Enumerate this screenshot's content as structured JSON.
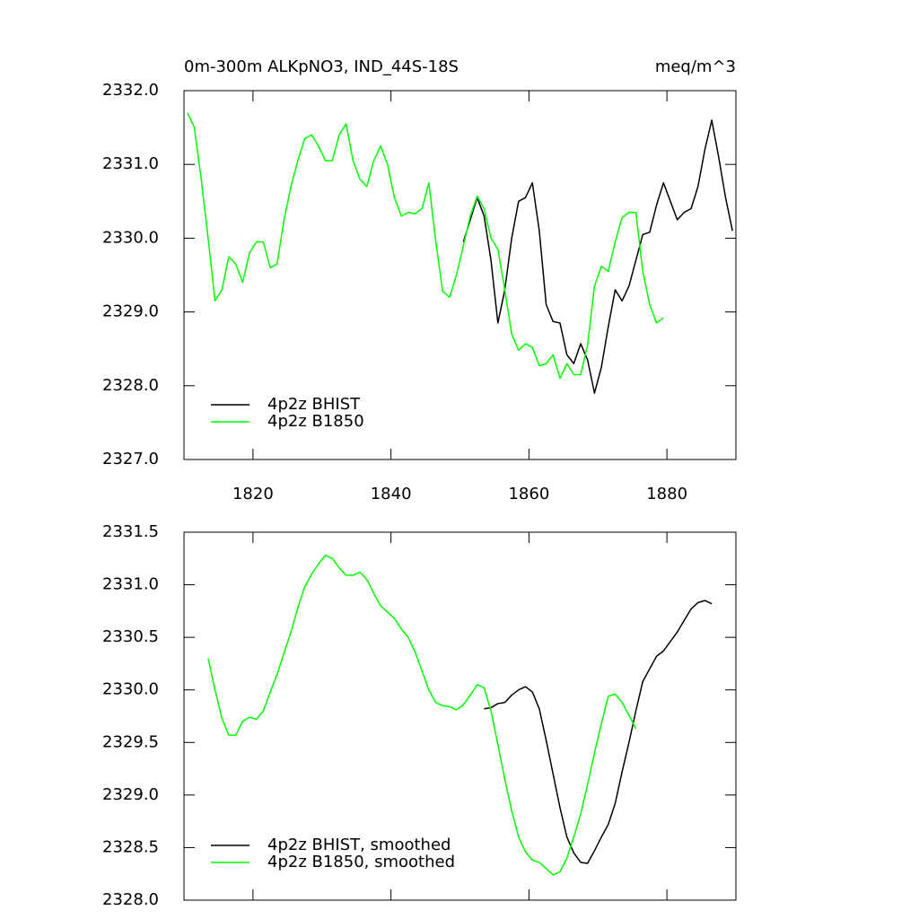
{
  "chart_data": [
    {
      "type": "line",
      "title": "0m-300m ALKpNO3, IND_44S-18S",
      "units_label": "meq/m^3",
      "xlim": [
        1810,
        1890
      ],
      "xticks": [
        1820,
        1840,
        1860,
        1880
      ],
      "show_xtick_labels": true,
      "ylim": [
        2327,
        2332
      ],
      "yticks": [
        {
          "value": 2327,
          "label": "2327.0"
        },
        {
          "value": 2328,
          "label": "2328.0"
        },
        {
          "value": 2329,
          "label": "2329.0"
        },
        {
          "value": 2330,
          "label": "2330.0"
        },
        {
          "value": 2331,
          "label": "2331.0"
        },
        {
          "value": 2332,
          "label": "2332.0"
        }
      ],
      "legend": "lower left",
      "series": [
        {
          "name": "4p2z BHIST",
          "color": "#000000",
          "x": [
            1850.5,
            1851.5,
            1852.5,
            1853.5,
            1854.5,
            1855.5,
            1856.5,
            1857.5,
            1858.5,
            1859.5,
            1860.5,
            1861.5,
            1862.5,
            1863.5,
            1864.5,
            1865.5,
            1866.5,
            1867.5,
            1868.5,
            1869.5,
            1870.5,
            1871.5,
            1872.5,
            1873.5,
            1874.5,
            1875.5,
            1876.5,
            1877.5,
            1878.5,
            1879.5,
            1880.5,
            1881.5,
            1882.5,
            1883.5,
            1884.5,
            1885.5,
            1886.5,
            1887.5,
            1888.5,
            1889.5
          ],
          "values": [
            2329.95,
            2330.25,
            2330.55,
            2330.3,
            2329.7,
            2328.85,
            2329.3,
            2330.0,
            2330.5,
            2330.55,
            2330.75,
            2330.1,
            2329.1,
            2328.87,
            2328.85,
            2328.42,
            2328.3,
            2328.57,
            2328.35,
            2327.9,
            2328.25,
            2328.8,
            2329.3,
            2329.15,
            2329.35,
            2329.7,
            2330.05,
            2330.08,
            2330.45,
            2330.75,
            2330.5,
            2330.25,
            2330.35,
            2330.4,
            2330.7,
            2331.2,
            2331.6,
            2331.1,
            2330.55,
            2330.1
          ]
        },
        {
          "name": "4p2z B1850",
          "color": "#00ff00",
          "x": [
            1810.5,
            1811.5,
            1812.5,
            1813.5,
            1814.5,
            1815.5,
            1816.5,
            1817.5,
            1818.5,
            1819.5,
            1820.5,
            1821.5,
            1822.5,
            1823.5,
            1824.5,
            1825.5,
            1826.5,
            1827.5,
            1828.5,
            1829.5,
            1830.5,
            1831.5,
            1832.5,
            1833.5,
            1834.5,
            1835.5,
            1836.5,
            1837.5,
            1838.5,
            1839.5,
            1840.5,
            1841.5,
            1842.5,
            1843.5,
            1844.5,
            1845.5,
            1846.5,
            1847.5,
            1848.5,
            1849.5,
            1850.5,
            1851.5,
            1852.5,
            1853.5,
            1854.5,
            1855.5,
            1856.5,
            1857.5,
            1858.5,
            1859.5,
            1860.5,
            1861.5,
            1862.5,
            1863.5,
            1864.5,
            1865.5,
            1866.5,
            1867.5,
            1868.5,
            1869.5,
            1870.5,
            1871.5,
            1872.5,
            1873.5,
            1874.5,
            1875.5,
            1876.5,
            1877.5,
            1878.5,
            1879.5
          ],
          "values": [
            2331.7,
            2331.5,
            2330.8,
            2330.0,
            2329.15,
            2329.3,
            2329.75,
            2329.65,
            2329.4,
            2329.8,
            2329.95,
            2329.95,
            2329.6,
            2329.65,
            2330.25,
            2330.7,
            2331.05,
            2331.35,
            2331.4,
            2331.25,
            2331.05,
            2331.05,
            2331.4,
            2331.55,
            2331.05,
            2330.8,
            2330.7,
            2331.05,
            2331.25,
            2331.0,
            2330.55,
            2330.3,
            2330.35,
            2330.33,
            2330.4,
            2330.75,
            2329.95,
            2329.28,
            2329.2,
            2329.5,
            2329.9,
            2330.3,
            2330.57,
            2330.4,
            2330.0,
            2329.85,
            2329.3,
            2328.7,
            2328.48,
            2328.57,
            2328.52,
            2328.27,
            2328.3,
            2328.42,
            2328.1,
            2328.3,
            2328.15,
            2328.15,
            2328.55,
            2329.35,
            2329.62,
            2329.55,
            2329.95,
            2330.28,
            2330.35,
            2330.35,
            2329.55,
            2329.1,
            2328.85,
            2328.92
          ]
        }
      ]
    },
    {
      "type": "line",
      "xlim": [
        1810,
        1890
      ],
      "xticks": [
        1820,
        1840,
        1860,
        1880
      ],
      "show_xtick_labels": false,
      "ylim": [
        2328,
        2331.5
      ],
      "yticks": [
        {
          "value": 2328,
          "label": "2328.0"
        },
        2328.5,
        {
          "value": 2329,
          "label": "2329.0"
        },
        2329.5,
        {
          "value": 2330,
          "label": "2330.0"
        },
        2330.5,
        {
          "value": 2331,
          "label": "2331.0"
        },
        2331.5
      ],
      "legend": "lower left",
      "series": [
        {
          "name": "4p2z BHIST, smoothed",
          "color": "#000000",
          "x": [
            1853.5,
            1854.5,
            1855.5,
            1856.5,
            1857.5,
            1858.5,
            1859.5,
            1860.5,
            1861.5,
            1862.5,
            1863.5,
            1864.5,
            1865.5,
            1866.5,
            1867.5,
            1868.5,
            1869.5,
            1870.5,
            1871.5,
            1872.5,
            1873.5,
            1874.5,
            1875.5,
            1876.5,
            1877.5,
            1878.5,
            1879.5,
            1880.5,
            1881.5,
            1882.5,
            1883.5,
            1884.5,
            1885.5,
            1886.5
          ],
          "values": [
            2329.82,
            2329.83,
            2329.87,
            2329.88,
            2329.95,
            2330.0,
            2330.03,
            2329.98,
            2329.82,
            2329.52,
            2329.2,
            2328.88,
            2328.6,
            2328.45,
            2328.36,
            2328.35,
            2328.47,
            2328.6,
            2328.72,
            2328.92,
            2329.22,
            2329.5,
            2329.8,
            2330.08,
            2330.2,
            2330.32,
            2330.37,
            2330.46,
            2330.55,
            2330.66,
            2330.77,
            2330.83,
            2330.85,
            2330.82
          ]
        },
        {
          "name": "4p2z B1850, smoothed",
          "color": "#00ff00",
          "x": [
            1813.5,
            1814.5,
            1815.5,
            1816.5,
            1817.5,
            1818.5,
            1819.5,
            1820.5,
            1821.5,
            1822.5,
            1823.5,
            1824.5,
            1825.5,
            1826.5,
            1827.5,
            1828.5,
            1829.5,
            1830.5,
            1831.5,
            1832.5,
            1833.5,
            1834.5,
            1835.5,
            1836.5,
            1837.5,
            1838.5,
            1839.5,
            1840.5,
            1841.5,
            1842.5,
            1843.5,
            1844.5,
            1845.5,
            1846.5,
            1847.5,
            1848.5,
            1849.5,
            1850.5,
            1851.5,
            1852.5,
            1853.5,
            1854.5,
            1855.5,
            1856.5,
            1857.5,
            1858.5,
            1859.5,
            1860.5,
            1861.5,
            1862.5,
            1863.5,
            1864.5,
            1865.5,
            1866.5,
            1867.5,
            1868.5,
            1869.5,
            1870.5,
            1871.5,
            1872.5,
            1873.5,
            1874.5,
            1875.5
          ],
          "values": [
            2330.3,
            2330.0,
            2329.73,
            2329.57,
            2329.57,
            2329.7,
            2329.74,
            2329.72,
            2329.8,
            2329.98,
            2330.15,
            2330.35,
            2330.55,
            2330.78,
            2330.98,
            2331.1,
            2331.2,
            2331.28,
            2331.25,
            2331.16,
            2331.09,
            2331.09,
            2331.12,
            2331.05,
            2330.92,
            2330.8,
            2330.74,
            2330.68,
            2330.58,
            2330.5,
            2330.36,
            2330.18,
            2330.0,
            2329.88,
            2329.85,
            2329.84,
            2329.81,
            2329.86,
            2329.95,
            2330.05,
            2330.02,
            2329.8,
            2329.48,
            2329.15,
            2328.85,
            2328.6,
            2328.46,
            2328.38,
            2328.36,
            2328.3,
            2328.24,
            2328.27,
            2328.4,
            2328.6,
            2328.82,
            2329.1,
            2329.4,
            2329.68,
            2329.94,
            2329.96,
            2329.88,
            2329.76,
            2329.63
          ]
        }
      ]
    }
  ]
}
